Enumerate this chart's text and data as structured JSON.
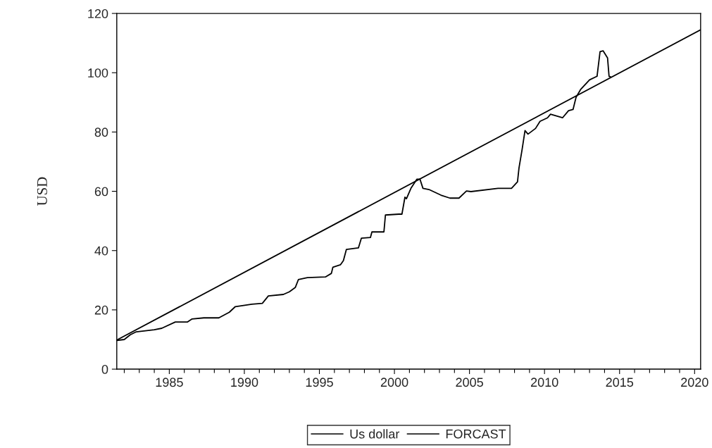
{
  "chart_data": {
    "type": "line",
    "ylabel": "USD",
    "xlim": [
      1981.5,
      2020.4
    ],
    "ylim": [
      0,
      120
    ],
    "xticks": [
      1985,
      1990,
      1995,
      2000,
      2005,
      2010,
      2015,
      2020
    ],
    "yticks": [
      0,
      20,
      40,
      60,
      80,
      100,
      120
    ],
    "grid": false,
    "legend": "bottom",
    "line_style": "solid",
    "marker": "none",
    "series": [
      {
        "name": "Us dollar",
        "color": "#000000",
        "x": [
          1981.5,
          1982.0,
          1982.4,
          1982.8,
          1984.0,
          1984.5,
          1985.4,
          1986.2,
          1986.5,
          1987.3,
          1988.3,
          1989.0,
          1989.4,
          1990.5,
          1991.2,
          1991.6,
          1992.6,
          1993.0,
          1993.4,
          1993.6,
          1994.2,
          1995.4,
          1995.8,
          1995.9,
          1996.4,
          1996.6,
          1996.8,
          1997.6,
          1997.8,
          1998.4,
          1998.5,
          1999.3,
          1999.4,
          2000.3,
          2000.5,
          2000.7,
          2000.8,
          2001.1,
          2001.5,
          2001.7,
          2001.9,
          2002.3,
          2003.1,
          2003.7,
          2004.3,
          2004.8,
          2005.1,
          2006.9,
          2007.8,
          2008.2,
          2008.3,
          2008.5,
          2008.7,
          2008.9,
          2009.4,
          2009.7,
          2010.2,
          2010.4,
          2011.2,
          2011.6,
          2011.9,
          2012.1,
          2012.4,
          2013.0,
          2013.5,
          2013.7,
          2013.9,
          2014.2,
          2014.3,
          2014.4
        ],
        "values": [
          9.7,
          10.0,
          11.6,
          12.6,
          13.3,
          13.8,
          15.9,
          15.9,
          16.9,
          17.3,
          17.3,
          19.2,
          21.1,
          21.9,
          22.2,
          24.7,
          25.2,
          26.1,
          27.6,
          30.2,
          30.9,
          31.1,
          32.3,
          34.4,
          35.2,
          36.6,
          40.4,
          40.9,
          44.2,
          44.4,
          46.3,
          46.3,
          52.0,
          52.3,
          52.3,
          58.0,
          57.5,
          61.0,
          64.1,
          64.1,
          61.0,
          60.6,
          58.7,
          57.7,
          57.7,
          60.1,
          59.9,
          61.0,
          61.0,
          63.2,
          67.9,
          73.9,
          80.5,
          79.3,
          81.2,
          83.6,
          84.8,
          86.0,
          84.8,
          87.2,
          87.6,
          91.7,
          94.3,
          97.6,
          98.8,
          107.1,
          107.4,
          105.0,
          98.8,
          98.6
        ]
      },
      {
        "name": "FORCAST",
        "color": "#000000",
        "x": [
          1981.5,
          2020.4
        ],
        "values": [
          9.8,
          114.5
        ]
      }
    ]
  }
}
